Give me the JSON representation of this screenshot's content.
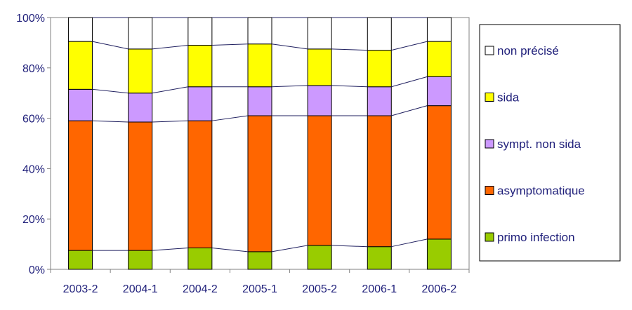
{
  "chart_data": {
    "type": "bar",
    "stacked": true,
    "percent_stacked": true,
    "categories": [
      "2003-2",
      "2004-1",
      "2004-2",
      "2005-1",
      "2005-2",
      "2006-1",
      "2006-2"
    ],
    "series": [
      {
        "name": "primo infection",
        "color": "#99cc00",
        "values": [
          7.5,
          7.5,
          8.5,
          7,
          9.5,
          9,
          12
        ]
      },
      {
        "name": "asymptomatique",
        "color": "#ff6600",
        "values": [
          51.5,
          51,
          50.5,
          54,
          51.5,
          52,
          53
        ]
      },
      {
        "name": "sympt. non sida",
        "color": "#cc99ff",
        "values": [
          12.5,
          11.5,
          13.5,
          11.5,
          12,
          11.5,
          11.5
        ]
      },
      {
        "name": "sida",
        "color": "#ffff00",
        "values": [
          19,
          17.5,
          16.5,
          17,
          14.5,
          14.5,
          14
        ]
      },
      {
        "name": "non précisé",
        "color": "#ffffff",
        "values": [
          9.5,
          12.5,
          11,
          10.5,
          12.5,
          13,
          9.5
        ]
      }
    ],
    "yticks": [
      "0%",
      "20%",
      "40%",
      "60%",
      "80%",
      "100%"
    ],
    "ylim": [
      0,
      100
    ],
    "grid": false,
    "series_lines": true,
    "legend": {
      "placement": "right",
      "order": [
        "non précisé",
        "sida",
        "sympt. non sida",
        "asymptomatique",
        "primo infection"
      ]
    }
  }
}
